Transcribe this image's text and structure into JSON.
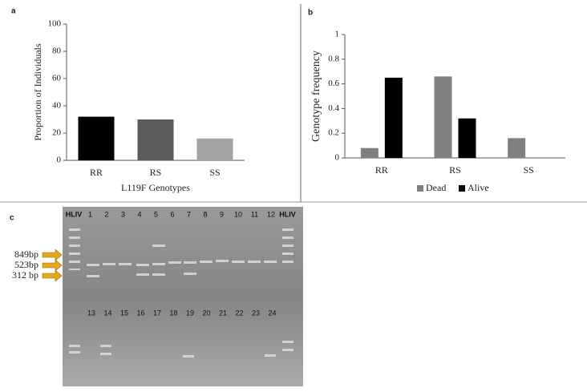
{
  "chart_data": [
    {
      "type": "bar",
      "panel": "a",
      "categories": [
        "RR",
        "RS",
        "SS"
      ],
      "values": [
        32,
        30,
        16
      ],
      "colors": [
        "#000000",
        "#5a5a5a",
        "#a3a3a6"
      ],
      "ylim": [
        0,
        100
      ],
      "yticks": [
        0,
        20,
        40,
        60,
        80,
        100
      ],
      "ylabel": "Proportion of Individuals",
      "xlabel": "L119F Genotypes",
      "grid": false
    },
    {
      "type": "grouped_bar",
      "panel": "b",
      "categories": [
        "RR",
        "RS",
        "SS"
      ],
      "series": [
        {
          "name": "Dead",
          "color": "#808080",
          "values": [
            0.08,
            0.66,
            0.16
          ]
        },
        {
          "name": "Alive",
          "color": "#000000",
          "values": [
            0.65,
            0.32,
            0
          ]
        }
      ],
      "ylim": [
        0,
        1
      ],
      "yticks": [
        0,
        0.2,
        0.4,
        0.6,
        0.8,
        1
      ],
      "ylabel": "Genotype  frequency",
      "legend": "bottom",
      "grid": false
    }
  ],
  "gel": {
    "panel": "c",
    "top_lanes": [
      "HLIV",
      "1",
      "2",
      "3",
      "4",
      "5",
      "6",
      "7",
      "8",
      "9",
      "10",
      "11",
      "12",
      "HLIV"
    ],
    "bottom_lanes": [
      "13",
      "14",
      "15",
      "16",
      "17",
      "18",
      "19",
      "20",
      "21",
      "22",
      "23",
      "24"
    ],
    "markers": [
      "849bp",
      "523bp",
      "312 bp"
    ]
  }
}
